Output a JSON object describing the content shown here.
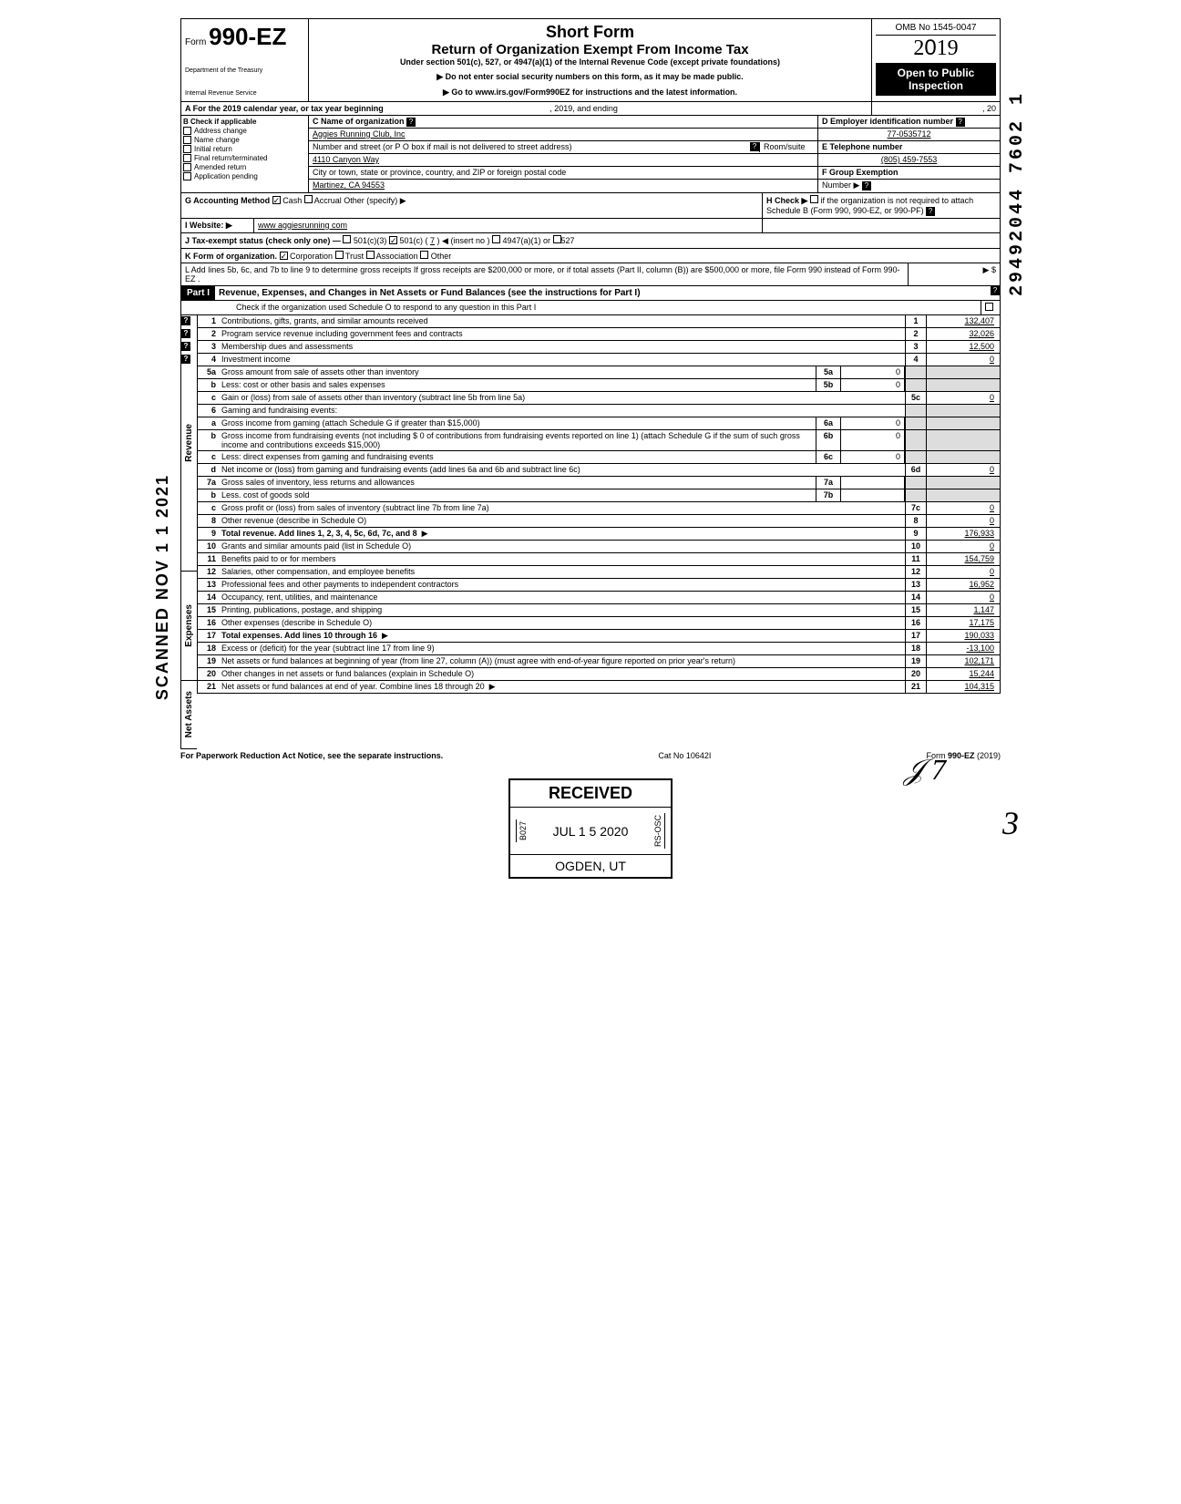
{
  "header": {
    "form_label": "Form",
    "form_number": "990-EZ",
    "dept1": "Department of the Treasury",
    "dept2": "Internal Revenue Service",
    "title1": "Short Form",
    "title2": "Return of Organization Exempt From Income Tax",
    "subtitle": "Under section 501(c), 527, or 4947(a)(1) of the Internal Revenue Code (except private foundations)",
    "instr1": "▶ Do not enter social security numbers on this form, as it may be made public.",
    "instr2": "▶ Go to www.irs.gov/Form990EZ for instructions and the latest information.",
    "omb": "OMB No 1545-0047",
    "year": "2019",
    "open_public": "Open to Public Inspection"
  },
  "section_a": {
    "a_label": "A For the 2019 calendar year, or tax year beginning",
    "a_mid": ", 2019, and ending",
    "a_end": ", 20",
    "b_label": "B  Check if applicable",
    "b_items": [
      "Address change",
      "Name change",
      "Initial return",
      "Final return/terminated",
      "Amended return",
      "Application pending"
    ],
    "c_label": "C  Name of organization",
    "c_value": "Aggies Running Club, Inc",
    "addr_label": "Number and street (or P O  box if mail is not delivered to street address)",
    "addr_room": "Room/suite",
    "addr_value": "4110 Canyon Way",
    "city_label": "City or town, state or province, country, and ZIP or foreign postal code",
    "city_value": "Martinez, CA 94553",
    "d_label": "D Employer identification number",
    "d_value": "77-0535712",
    "e_label": "E Telephone number",
    "e_value": "(805) 459-7553",
    "f_label": "F Group Exemption",
    "f_label2": "Number ▶",
    "g_label": "G Accounting Method",
    "g_cash": "Cash",
    "g_accrual": "Accrual",
    "g_other": "Other (specify) ▶",
    "h_label": "H Check ▶",
    "h_text": "if the organization is not required to attach Schedule B (Form 990, 990-EZ, or 990-PF)",
    "i_label": "I  Website: ▶",
    "i_value": "www aggiesrunning com",
    "j_label": "J Tax-exempt status (check only one) —",
    "j_501c3": "501(c)(3)",
    "j_501c": "501(c) (",
    "j_501c_num": "7",
    "j_501c_end": ") ◀ (insert no )",
    "j_4947": "4947(a)(1) or",
    "j_527": "527",
    "k_label": "K Form of organization.",
    "k_corp": "Corporation",
    "k_trust": "Trust",
    "k_assoc": "Association",
    "k_other": "Other",
    "l_text": "L Add lines 5b, 6c, and 7b to line 9 to determine gross receipts  If gross receipts are $200,000 or more, or if total assets (Part II, column (B)) are $500,000 or more, file Form 990 instead of Form 990-EZ .",
    "l_arrow": "▶",
    "l_dollar": "$"
  },
  "part1": {
    "label": "Part I",
    "title": "Revenue, Expenses, and Changes in Net Assets or Fund Balances (see the instructions for Part I)",
    "check_text": "Check if the organization used Schedule O to respond to any question in this Part I"
  },
  "sections": {
    "revenue": "Revenue",
    "expenses": "Expenses",
    "netassets": "Net Assets"
  },
  "lines": [
    {
      "n": "1",
      "t": "Contributions, gifts, grants, and similar amounts received",
      "box": "1",
      "v": "132,407"
    },
    {
      "n": "2",
      "t": "Program service revenue including government fees and contracts",
      "box": "2",
      "v": "32,026"
    },
    {
      "n": "3",
      "t": "Membership dues and assessments",
      "box": "3",
      "v": "12,500"
    },
    {
      "n": "4",
      "t": "Investment income",
      "box": "4",
      "v": "0"
    },
    {
      "n": "5a",
      "t": "Gross amount from sale of assets other than inventory",
      "mid_box": "5a",
      "mid_v": "0"
    },
    {
      "n": "b",
      "t": "Less: cost or other basis and sales expenses",
      "mid_box": "5b",
      "mid_v": "0"
    },
    {
      "n": "c",
      "t": "Gain or (loss) from sale of assets other than inventory (subtract line 5b from line 5a)",
      "box": "5c",
      "v": "0"
    },
    {
      "n": "6",
      "t": "Gaming and fundraising events:"
    },
    {
      "n": "a",
      "t": "Gross income from gaming (attach Schedule G if greater than $15,000)",
      "mid_box": "6a",
      "mid_v": "0"
    },
    {
      "n": "b",
      "t": "Gross income from fundraising events (not including  $             0 of contributions from fundraising events reported on line 1) (attach Schedule G if the sum of such gross income and contributions exceeds $15,000)",
      "mid_box": "6b",
      "mid_v": "0"
    },
    {
      "n": "c",
      "t": "Less: direct expenses from gaming and fundraising events",
      "mid_box": "6c",
      "mid_v": "0"
    },
    {
      "n": "d",
      "t": "Net income or (loss) from gaming and fundraising events (add lines 6a and 6b and subtract line 6c)",
      "box": "6d",
      "v": "0"
    },
    {
      "n": "7a",
      "t": "Gross sales of inventory, less returns and allowances",
      "mid_box": "7a",
      "mid_v": ""
    },
    {
      "n": "b",
      "t": "Less. cost of goods sold",
      "mid_box": "7b",
      "mid_v": ""
    },
    {
      "n": "c",
      "t": "Gross profit or (loss) from sales of inventory (subtract line 7b from line 7a)",
      "box": "7c",
      "v": "0"
    },
    {
      "n": "8",
      "t": "Other revenue (describe in Schedule O)",
      "box": "8",
      "v": "0"
    },
    {
      "n": "9",
      "t": "Total revenue. Add lines 1, 2, 3, 4, 5c, 6d, 7c, and 8",
      "box": "9",
      "v": "176,933",
      "bold": true,
      "arrow": true
    },
    {
      "n": "10",
      "t": "Grants and similar amounts paid (list in Schedule O)",
      "box": "10",
      "v": "0"
    },
    {
      "n": "11",
      "t": "Benefits paid to or for members",
      "box": "11",
      "v": "154,759"
    },
    {
      "n": "12",
      "t": "Salaries, other compensation, and employee benefits",
      "box": "12",
      "v": "0"
    },
    {
      "n": "13",
      "t": "Professional fees and other payments to independent contractors",
      "box": "13",
      "v": "16,952"
    },
    {
      "n": "14",
      "t": "Occupancy, rent, utilities, and maintenance",
      "box": "14",
      "v": "0"
    },
    {
      "n": "15",
      "t": "Printing, publications, postage, and shipping",
      "box": "15",
      "v": "1,147"
    },
    {
      "n": "16",
      "t": "Other expenses (describe in Schedule O)",
      "box": "16",
      "v": "17,175"
    },
    {
      "n": "17",
      "t": "Total expenses. Add lines 10 through 16",
      "box": "17",
      "v": "190,033",
      "bold": true,
      "arrow": true
    },
    {
      "n": "18",
      "t": "Excess or (deficit) for the year (subtract line 17 from line 9)",
      "box": "18",
      "v": "-13,100"
    },
    {
      "n": "19",
      "t": "Net assets or fund balances at beginning of year (from line 27, column (A)) (must agree with end-of-year figure reported on prior year's return)",
      "box": "19",
      "v": "102,171"
    },
    {
      "n": "20",
      "t": "Other changes in net assets or fund balances (explain in Schedule O)",
      "box": "20",
      "v": "15,244"
    },
    {
      "n": "21",
      "t": "Net assets or fund balances at end of year. Combine lines 18 through 20",
      "box": "21",
      "v": "104,315",
      "arrow": true
    }
  ],
  "footer": {
    "left": "For Paperwork Reduction Act Notice, see the separate instructions.",
    "mid": "Cat No 10642I",
    "right": "Form 990-EZ (2019)"
  },
  "stamp": {
    "received": "RECEIVED",
    "code_left": "B027",
    "date": "JUL 1 5 2020",
    "code_right": "RS-OSC",
    "location": "OGDEN, UT"
  },
  "margins": {
    "scanned": "SCANNED NOV 1 1 2021",
    "docnum": "29492044 7602 1",
    "hand_init": "𝒥 7",
    "hand_3": "3"
  }
}
